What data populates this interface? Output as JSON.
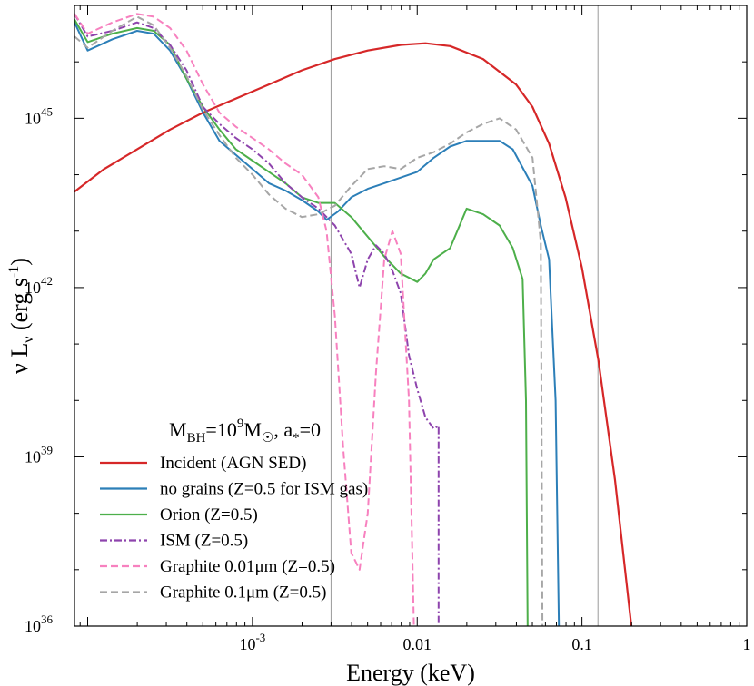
{
  "chart_data": {
    "type": "line",
    "title": "",
    "annotation": {
      "main": "M",
      "sub1": "BH",
      "mid": "=10",
      "sup": "9",
      "mid2": "M",
      "sun": "☉",
      "tail1": ", a",
      "star": "*",
      "tail2": "=0"
    },
    "xlabel": "Energy (keV)",
    "ylabel_parts": {
      "nu": "ν L",
      "sub": "ν",
      "unit": " (erg s",
      "sup": "-1",
      "close": ")"
    },
    "x_log": true,
    "y_log": true,
    "xlim_log10": [
      -4.08,
      0.0
    ],
    "ylim_log10": [
      36,
      47
    ],
    "x_ticks": [
      {
        "v": -3,
        "base": "10",
        "exp": "-3"
      },
      {
        "v": -2,
        "base": "0.01",
        "exp": ""
      },
      {
        "v": -1,
        "base": "0.1",
        "exp": ""
      },
      {
        "v": 0,
        "base": "1",
        "exp": ""
      }
    ],
    "y_ticks": [
      {
        "v": 36,
        "base": "10",
        "exp": "36"
      },
      {
        "v": 39,
        "base": "10",
        "exp": "39"
      },
      {
        "v": 42,
        "base": "10",
        "exp": "42"
      },
      {
        "v": 45,
        "base": "10",
        "exp": "45"
      }
    ],
    "vertical_lines_keV": [
      0.003,
      0.125
    ],
    "legend_position": "bottom-left",
    "series": [
      {
        "name": "Incident (AGN SED)",
        "color": "#d62728",
        "dash": "",
        "width": 2.2,
        "points": [
          [
            -4.08,
            43.7
          ],
          [
            -3.9,
            44.1
          ],
          [
            -3.7,
            44.45
          ],
          [
            -3.5,
            44.8
          ],
          [
            -3.3,
            45.1
          ],
          [
            -3.1,
            45.35
          ],
          [
            -2.9,
            45.6
          ],
          [
            -2.7,
            45.85
          ],
          [
            -2.5,
            46.05
          ],
          [
            -2.3,
            46.2
          ],
          [
            -2.1,
            46.3
          ],
          [
            -1.95,
            46.33
          ],
          [
            -1.8,
            46.28
          ],
          [
            -1.6,
            46.05
          ],
          [
            -1.4,
            45.6
          ],
          [
            -1.3,
            45.2
          ],
          [
            -1.2,
            44.55
          ],
          [
            -1.1,
            43.6
          ],
          [
            -1.0,
            42.35
          ],
          [
            -0.9,
            40.7
          ],
          [
            -0.8,
            38.6
          ],
          [
            -0.7,
            36
          ]
        ]
      },
      {
        "name": "no grains (Z=0.5 for ISM gas)",
        "color": "#2c7fb8",
        "dash": "",
        "width": 2.0,
        "points": [
          [
            -4.08,
            46.7
          ],
          [
            -4.0,
            46.2
          ],
          [
            -3.85,
            46.4
          ],
          [
            -3.7,
            46.55
          ],
          [
            -3.6,
            46.5
          ],
          [
            -3.5,
            46.2
          ],
          [
            -3.4,
            45.7
          ],
          [
            -3.3,
            45.1
          ],
          [
            -3.2,
            44.6
          ],
          [
            -3.1,
            44.35
          ],
          [
            -3.0,
            44.1
          ],
          [
            -2.9,
            43.85
          ],
          [
            -2.8,
            43.72
          ],
          [
            -2.7,
            43.55
          ],
          [
            -2.6,
            43.35
          ],
          [
            -2.55,
            43.2
          ],
          [
            -2.48,
            43.35
          ],
          [
            -2.4,
            43.6
          ],
          [
            -2.3,
            43.75
          ],
          [
            -2.2,
            43.85
          ],
          [
            -2.1,
            43.95
          ],
          [
            -2.0,
            44.05
          ],
          [
            -1.9,
            44.3
          ],
          [
            -1.8,
            44.5
          ],
          [
            -1.7,
            44.6
          ],
          [
            -1.6,
            44.6
          ],
          [
            -1.5,
            44.6
          ],
          [
            -1.42,
            44.45
          ],
          [
            -1.3,
            43.8
          ],
          [
            -1.25,
            43.1
          ],
          [
            -1.2,
            42.5
          ],
          [
            -1.16,
            40.0
          ],
          [
            -1.14,
            36
          ]
        ]
      },
      {
        "name": "Orion (Z=0.5)",
        "color": "#4daf4a",
        "dash": "",
        "width": 2.0,
        "points": [
          [
            -4.08,
            46.75
          ],
          [
            -4.0,
            46.35
          ],
          [
            -3.85,
            46.5
          ],
          [
            -3.7,
            46.6
          ],
          [
            -3.6,
            46.55
          ],
          [
            -3.5,
            46.3
          ],
          [
            -3.4,
            45.7
          ],
          [
            -3.3,
            45.2
          ],
          [
            -3.2,
            44.8
          ],
          [
            -3.1,
            44.45
          ],
          [
            -3.0,
            44.25
          ],
          [
            -2.9,
            44.05
          ],
          [
            -2.8,
            43.85
          ],
          [
            -2.7,
            43.6
          ],
          [
            -2.6,
            43.5
          ],
          [
            -2.5,
            43.5
          ],
          [
            -2.4,
            43.25
          ],
          [
            -2.3,
            42.9
          ],
          [
            -2.2,
            42.55
          ],
          [
            -2.1,
            42.25
          ],
          [
            -2.0,
            42.1
          ],
          [
            -1.95,
            42.25
          ],
          [
            -1.9,
            42.5
          ],
          [
            -1.8,
            42.7
          ],
          [
            -1.7,
            43.4
          ],
          [
            -1.6,
            43.3
          ],
          [
            -1.5,
            43.1
          ],
          [
            -1.42,
            42.7
          ],
          [
            -1.36,
            42.15
          ],
          [
            -1.34,
            40.0
          ],
          [
            -1.33,
            36
          ]
        ]
      },
      {
        "name": "ISM (Z=0.5)",
        "color": "#8e44ad",
        "dash": "8,3,2,3",
        "width": 2.0,
        "points": [
          [
            -4.08,
            46.85
          ],
          [
            -4.0,
            46.45
          ],
          [
            -3.85,
            46.55
          ],
          [
            -3.7,
            46.7
          ],
          [
            -3.6,
            46.6
          ],
          [
            -3.5,
            46.3
          ],
          [
            -3.4,
            45.85
          ],
          [
            -3.3,
            45.2
          ],
          [
            -3.2,
            44.9
          ],
          [
            -3.1,
            44.65
          ],
          [
            -3.0,
            44.45
          ],
          [
            -2.9,
            44.2
          ],
          [
            -2.8,
            43.85
          ],
          [
            -2.7,
            43.6
          ],
          [
            -2.6,
            43.4
          ],
          [
            -2.5,
            43.1
          ],
          [
            -2.4,
            42.6
          ],
          [
            -2.35,
            42.0
          ],
          [
            -2.3,
            42.5
          ],
          [
            -2.25,
            42.75
          ],
          [
            -2.2,
            42.6
          ],
          [
            -2.15,
            42.3
          ],
          [
            -2.1,
            41.9
          ],
          [
            -2.05,
            40.8
          ],
          [
            -2.0,
            40.2
          ],
          [
            -1.95,
            39.7
          ],
          [
            -1.9,
            39.5
          ],
          [
            -1.87,
            39.55
          ],
          [
            -1.87,
            36
          ]
        ]
      },
      {
        "name": "Graphite 0.01μm  (Z=0.5)",
        "color": "#f781bf",
        "dash": "8,4",
        "width": 2.0,
        "points": [
          [
            -4.08,
            46.85
          ],
          [
            -4.0,
            46.5
          ],
          [
            -3.85,
            46.7
          ],
          [
            -3.7,
            46.85
          ],
          [
            -3.6,
            46.8
          ],
          [
            -3.5,
            46.6
          ],
          [
            -3.4,
            46.2
          ],
          [
            -3.3,
            45.6
          ],
          [
            -3.2,
            45.1
          ],
          [
            -3.1,
            44.85
          ],
          [
            -3.0,
            44.65
          ],
          [
            -2.9,
            44.45
          ],
          [
            -2.8,
            44.2
          ],
          [
            -2.7,
            44.0
          ],
          [
            -2.6,
            43.6
          ],
          [
            -2.55,
            43.0
          ],
          [
            -2.5,
            41.5
          ],
          [
            -2.45,
            39.2
          ],
          [
            -2.4,
            37.3
          ],
          [
            -2.35,
            37.0
          ],
          [
            -2.3,
            38.0
          ],
          [
            -2.25,
            40.5
          ],
          [
            -2.2,
            42.5
          ],
          [
            -2.15,
            43.0
          ],
          [
            -2.1,
            42.6
          ],
          [
            -2.05,
            40.0
          ],
          [
            -2.02,
            36
          ]
        ]
      },
      {
        "name": "Graphite 0.1μm  (Z=0.5)",
        "color": "#a6a6a6",
        "dash": "8,4",
        "width": 2.0,
        "points": [
          [
            -4.08,
            46.45
          ],
          [
            -4.0,
            46.25
          ],
          [
            -3.85,
            46.55
          ],
          [
            -3.7,
            46.8
          ],
          [
            -3.6,
            46.65
          ],
          [
            -3.5,
            46.25
          ],
          [
            -3.4,
            45.75
          ],
          [
            -3.3,
            45.15
          ],
          [
            -3.2,
            44.7
          ],
          [
            -3.1,
            44.3
          ],
          [
            -3.0,
            44.0
          ],
          [
            -2.9,
            43.65
          ],
          [
            -2.8,
            43.4
          ],
          [
            -2.7,
            43.25
          ],
          [
            -2.6,
            43.3
          ],
          [
            -2.5,
            43.45
          ],
          [
            -2.4,
            43.8
          ],
          [
            -2.3,
            44.1
          ],
          [
            -2.2,
            44.15
          ],
          [
            -2.1,
            44.1
          ],
          [
            -2.0,
            44.3
          ],
          [
            -1.9,
            44.4
          ],
          [
            -1.8,
            44.55
          ],
          [
            -1.7,
            44.75
          ],
          [
            -1.6,
            44.9
          ],
          [
            -1.5,
            45.0
          ],
          [
            -1.4,
            44.8
          ],
          [
            -1.3,
            44.3
          ],
          [
            -1.25,
            42.8
          ],
          [
            -1.24,
            36
          ]
        ]
      }
    ]
  }
}
